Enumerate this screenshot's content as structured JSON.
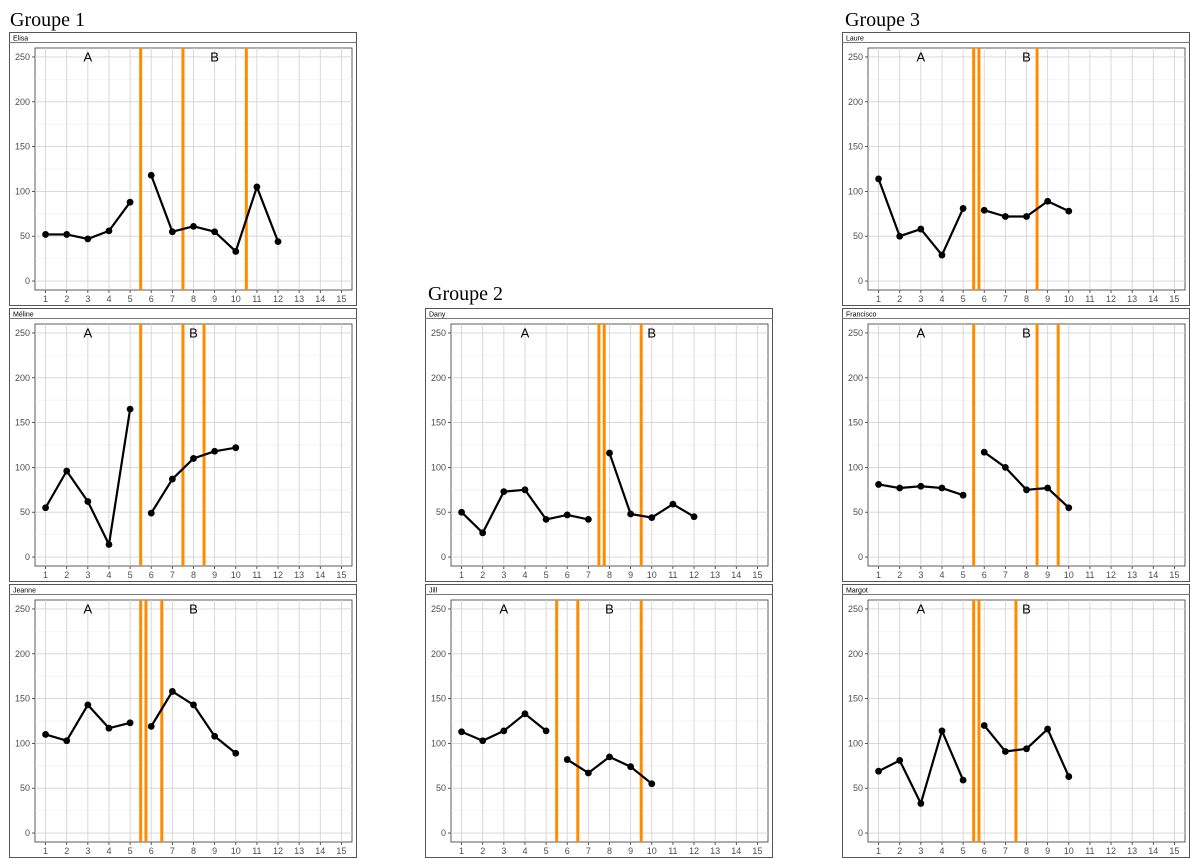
{
  "groups": [
    {
      "title": "Groupe 1"
    },
    {
      "title": "Groupe 2"
    },
    {
      "title": "Groupe 3"
    }
  ],
  "chart_data": [
    {
      "type": "line",
      "group": "Groupe 1",
      "title": "Elisa",
      "phase_labels": [
        {
          "text": "A",
          "x": 3
        },
        {
          "text": "B",
          "x": 9
        }
      ],
      "phase_lines": [
        5.5,
        7.5,
        10.5
      ],
      "segments": [
        {
          "x": [
            1,
            2,
            3,
            4,
            5
          ],
          "y": [
            52,
            52,
            47,
            56,
            88
          ]
        },
        {
          "x": [
            6,
            7,
            8,
            9,
            10,
            11,
            12
          ],
          "y": [
            118,
            55,
            61,
            55,
            33,
            105,
            44
          ]
        }
      ],
      "xlim": [
        0.5,
        15.5
      ],
      "ylim": [
        -10,
        260
      ],
      "yticks": [
        0,
        50,
        100,
        150,
        200,
        250
      ],
      "xticks": [
        1,
        2,
        3,
        4,
        5,
        6,
        7,
        8,
        9,
        10,
        11,
        12,
        13,
        14,
        15
      ],
      "grid": true
    },
    {
      "type": "line",
      "group": "Groupe 1",
      "title": "Méline",
      "phase_labels": [
        {
          "text": "A",
          "x": 3
        },
        {
          "text": "B",
          "x": 8
        }
      ],
      "phase_lines": [
        5.5,
        7.5,
        8.5
      ],
      "segments": [
        {
          "x": [
            1,
            2,
            3,
            4,
            5
          ],
          "y": [
            55,
            96,
            62,
            14,
            165
          ]
        },
        {
          "x": [
            6,
            7,
            8,
            9,
            10
          ],
          "y": [
            49,
            87,
            110,
            118,
            122
          ]
        }
      ],
      "xlim": [
        0.5,
        15.5
      ],
      "ylim": [
        -10,
        260
      ],
      "yticks": [
        0,
        50,
        100,
        150,
        200,
        250
      ],
      "xticks": [
        1,
        2,
        3,
        4,
        5,
        6,
        7,
        8,
        9,
        10,
        11,
        12,
        13,
        14,
        15
      ],
      "grid": true
    },
    {
      "type": "line",
      "group": "Groupe 1",
      "title": "Jeanne",
      "phase_labels": [
        {
          "text": "A",
          "x": 3
        },
        {
          "text": "B",
          "x": 8
        }
      ],
      "phase_lines": [
        5.5,
        5.75,
        6.5
      ],
      "segments": [
        {
          "x": [
            1,
            2,
            3,
            4,
            5
          ],
          "y": [
            110,
            103,
            143,
            117,
            123
          ]
        },
        {
          "x": [
            6,
            7,
            8,
            9,
            10
          ],
          "y": [
            119,
            158,
            143,
            108,
            89
          ]
        }
      ],
      "xlim": [
        0.5,
        15.5
      ],
      "ylim": [
        -10,
        260
      ],
      "yticks": [
        0,
        50,
        100,
        150,
        200,
        250
      ],
      "xticks": [
        1,
        2,
        3,
        4,
        5,
        6,
        7,
        8,
        9,
        10,
        11,
        12,
        13,
        14,
        15
      ],
      "grid": true
    },
    {
      "type": "line",
      "group": "Groupe 2",
      "title": "Dany",
      "phase_labels": [
        {
          "text": "A",
          "x": 4
        },
        {
          "text": "B",
          "x": 10
        }
      ],
      "phase_lines": [
        7.5,
        7.75,
        9.5
      ],
      "segments": [
        {
          "x": [
            1,
            2,
            3,
            4,
            5,
            6,
            7
          ],
          "y": [
            50,
            27,
            73,
            75,
            42,
            47,
            42
          ]
        },
        {
          "x": [
            8,
            9,
            10,
            11,
            12
          ],
          "y": [
            116,
            48,
            44,
            59,
            45
          ]
        }
      ],
      "xlim": [
        0.5,
        15.5
      ],
      "ylim": [
        -10,
        260
      ],
      "yticks": [
        0,
        50,
        100,
        150,
        200,
        250
      ],
      "xticks": [
        1,
        2,
        3,
        4,
        5,
        6,
        7,
        8,
        9,
        10,
        11,
        12,
        13,
        14,
        15
      ],
      "grid": true
    },
    {
      "type": "line",
      "group": "Groupe 2",
      "title": "Jill",
      "phase_labels": [
        {
          "text": "A",
          "x": 3
        },
        {
          "text": "B",
          "x": 8
        }
      ],
      "phase_lines": [
        5.5,
        6.5,
        9.5
      ],
      "segments": [
        {
          "x": [
            1,
            2,
            3,
            4,
            5
          ],
          "y": [
            113,
            103,
            114,
            133,
            114
          ]
        },
        {
          "x": [
            6,
            7,
            8,
            9,
            10
          ],
          "y": [
            82,
            67,
            85,
            74,
            55
          ]
        }
      ],
      "xlim": [
        0.5,
        15.5
      ],
      "ylim": [
        -10,
        260
      ],
      "yticks": [
        0,
        50,
        100,
        150,
        200,
        250
      ],
      "xticks": [
        1,
        2,
        3,
        4,
        5,
        6,
        7,
        8,
        9,
        10,
        11,
        12,
        13,
        14,
        15
      ],
      "grid": true
    },
    {
      "type": "line",
      "group": "Groupe 3",
      "title": "Laure",
      "phase_labels": [
        {
          "text": "A",
          "x": 3
        },
        {
          "text": "B",
          "x": 8
        }
      ],
      "phase_lines": [
        5.5,
        5.75,
        8.5
      ],
      "segments": [
        {
          "x": [
            1,
            2,
            3,
            4,
            5
          ],
          "y": [
            114,
            50,
            58,
            29,
            81
          ]
        },
        {
          "x": [
            6,
            7,
            8,
            9,
            10
          ],
          "y": [
            79,
            72,
            72,
            89,
            78
          ]
        }
      ],
      "xlim": [
        0.5,
        15.5
      ],
      "ylim": [
        -10,
        260
      ],
      "yticks": [
        0,
        50,
        100,
        150,
        200,
        250
      ],
      "xticks": [
        1,
        2,
        3,
        4,
        5,
        6,
        7,
        8,
        9,
        10,
        11,
        12,
        13,
        14,
        15
      ],
      "grid": true
    },
    {
      "type": "line",
      "group": "Groupe 3",
      "title": "Francisco",
      "phase_labels": [
        {
          "text": "A",
          "x": 3
        },
        {
          "text": "B",
          "x": 8
        }
      ],
      "phase_lines": [
        5.5,
        8.5,
        9.5
      ],
      "segments": [
        {
          "x": [
            1,
            2,
            3,
            4,
            5
          ],
          "y": [
            81,
            77,
            79,
            77,
            69
          ]
        },
        {
          "x": [
            6,
            7,
            8,
            9,
            10
          ],
          "y": [
            117,
            100,
            75,
            77,
            55
          ]
        }
      ],
      "xlim": [
        0.5,
        15.5
      ],
      "ylim": [
        -10,
        260
      ],
      "yticks": [
        0,
        50,
        100,
        150,
        200,
        250
      ],
      "xticks": [
        1,
        2,
        3,
        4,
        5,
        6,
        7,
        8,
        9,
        10,
        11,
        12,
        13,
        14,
        15
      ],
      "grid": true
    },
    {
      "type": "line",
      "group": "Groupe 3",
      "title": "Margot",
      "phase_labels": [
        {
          "text": "A",
          "x": 3
        },
        {
          "text": "B",
          "x": 8
        }
      ],
      "phase_lines": [
        5.5,
        5.75,
        7.5
      ],
      "segments": [
        {
          "x": [
            1,
            2,
            3,
            4,
            5
          ],
          "y": [
            69,
            81,
            33,
            114,
            59
          ]
        },
        {
          "x": [
            6,
            7,
            8,
            9,
            10
          ],
          "y": [
            120,
            91,
            94,
            116,
            63
          ]
        }
      ],
      "xlim": [
        0.5,
        15.5
      ],
      "ylim": [
        -10,
        260
      ],
      "yticks": [
        0,
        50,
        100,
        150,
        200,
        250
      ],
      "xticks": [
        1,
        2,
        3,
        4,
        5,
        6,
        7,
        8,
        9,
        10,
        11,
        12,
        13,
        14,
        15
      ],
      "grid": true
    }
  ]
}
